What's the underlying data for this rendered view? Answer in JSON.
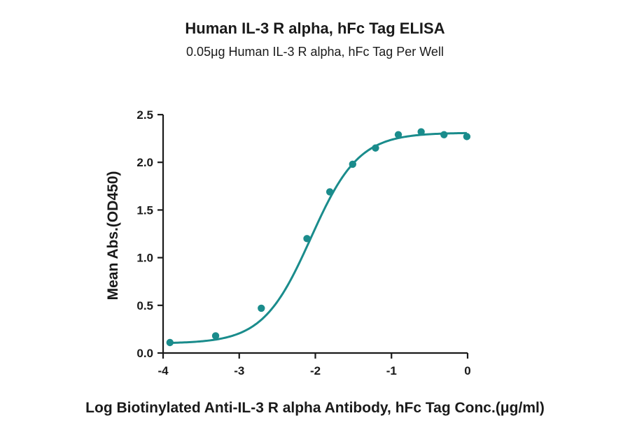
{
  "chart_data": {
    "type": "scatter",
    "title": "Human IL-3 R alpha, hFc Tag ELISA",
    "subtitle": "0.05μg Human IL-3 R alpha, hFc Tag Per Well",
    "xlabel": "Log Biotinylated Anti-IL-3 R alpha Antibody, hFc Tag Conc.(μg/ml)",
    "ylabel": "Mean Abs.(OD450)",
    "xlim": [
      -4,
      0
    ],
    "ylim": [
      0,
      2.5
    ],
    "x_ticks": [
      -4,
      -3,
      -2,
      -1,
      0
    ],
    "x_tick_labels": [
      "-4",
      "-3",
      "-2",
      "-1",
      "0"
    ],
    "y_ticks": [
      0,
      0.5,
      1,
      1.5,
      2,
      2.5
    ],
    "y_tick_labels": [
      "0.0",
      "0.5",
      "1.0",
      "1.5",
      "2.0",
      "2.5"
    ],
    "grid": false,
    "color": "#1a8c8c",
    "series": [
      {
        "points": [
          {
            "x": -3.91,
            "y": 0.11
          },
          {
            "x": -3.31,
            "y": 0.18
          },
          {
            "x": -2.71,
            "y": 0.47
          },
          {
            "x": -2.11,
            "y": 1.2
          },
          {
            "x": -1.81,
            "y": 1.69
          },
          {
            "x": -1.51,
            "y": 1.98
          },
          {
            "x": -1.21,
            "y": 2.15
          },
          {
            "x": -0.91,
            "y": 2.29
          },
          {
            "x": -0.61,
            "y": 2.32
          },
          {
            "x": -0.31,
            "y": 2.29
          },
          {
            "x": -0.01,
            "y": 2.27
          }
        ],
        "fit": {
          "model": "4PL",
          "bottom": 0.1,
          "top": 2.31,
          "logEC50": -2.06,
          "hill": 1.38
        }
      }
    ]
  }
}
